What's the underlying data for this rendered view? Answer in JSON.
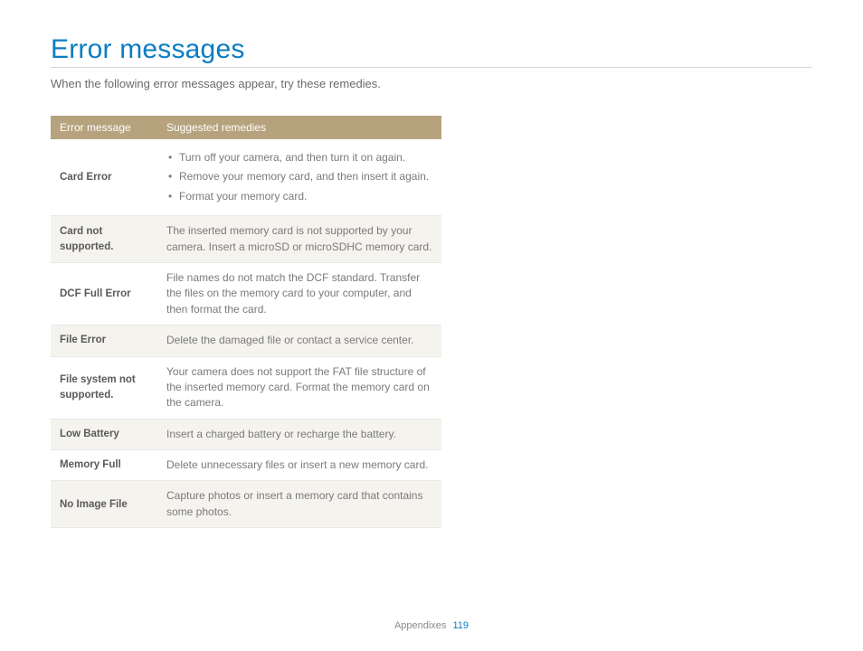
{
  "title": "Error messages",
  "intro": "When the following error messages appear, try these remedies.",
  "table": {
    "header": {
      "col1": "Error message",
      "col2": "Suggested remedies"
    },
    "rows": [
      {
        "label": "Card Error",
        "bullets": [
          "Turn off your camera, and then turn it on again.",
          "Remove your memory card, and then insert it again.",
          "Format your memory card."
        ],
        "alt": false
      },
      {
        "label": "Card not supported.",
        "text": "The inserted memory card is not supported by your camera. Insert a microSD or microSDHC memory card.",
        "alt": true
      },
      {
        "label": "DCF Full Error",
        "text": "File names do not match the DCF standard. Transfer the files on the memory card to your computer, and then format the card.",
        "alt": false
      },
      {
        "label": "File Error",
        "text": "Delete the damaged file or contact a service center.",
        "alt": true
      },
      {
        "label": "File system not supported.",
        "text": "Your camera does not support the FAT file structure of the inserted memory card. Format the memory card on the camera.",
        "alt": false
      },
      {
        "label": "Low Battery",
        "text": "Insert a charged battery or recharge the battery.",
        "alt": true
      },
      {
        "label": "Memory Full",
        "text": "Delete unnecessary files or insert a new memory card.",
        "alt": false
      },
      {
        "label": "No Image File",
        "text": "Capture photos or insert a memory card that contains some photos.",
        "alt": true
      }
    ]
  },
  "footer": {
    "section": "Appendixes",
    "page": "119"
  },
  "colors": {
    "title": "#0a7dc2",
    "header_bg": "#b6a37e",
    "alt_row_bg": "#f5f3ee",
    "text": "#7a7a7a",
    "label": "#5a5a5a",
    "rule": "#d6d6d6"
  }
}
